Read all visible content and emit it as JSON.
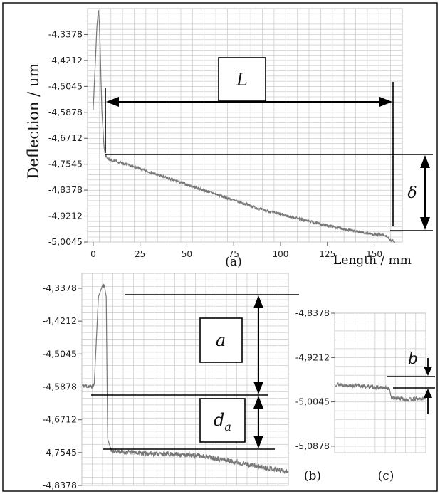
{
  "chart_data": [
    {
      "id": "a",
      "type": "line",
      "panel_label": "(a)",
      "xlabel": "Length / mm",
      "ylabel": "Deflection / um",
      "xlim": [
        -3,
        165
      ],
      "ylim": [
        -5.0045,
        -4.2545
      ],
      "x_ticks": [
        "0",
        "25",
        "50",
        "75",
        "100",
        "125",
        "150"
      ],
      "y_ticks": [
        "-4,3378",
        "-4,4212",
        "-4,5045",
        "-4,5878",
        "-4,6712",
        "-4,7545",
        "-4,8378",
        "-4,9212",
        "-5,0045"
      ],
      "grid": true,
      "series": [
        {
          "color": "#777777",
          "x": [
            0,
            1.2,
            2,
            2.8,
            3.4,
            4,
            4.6,
            5.2,
            5.8,
            6.5,
            7.5,
            9,
            12,
            20,
            30,
            40,
            50,
            60,
            70,
            80,
            90,
            100,
            110,
            120,
            130,
            140,
            150,
            155,
            157,
            158,
            161
          ],
          "y": [
            -4.58,
            -4.42,
            -4.31,
            -4.26,
            -4.31,
            -4.44,
            -4.58,
            -4.64,
            -4.7,
            -4.725,
            -4.735,
            -4.74,
            -4.745,
            -4.76,
            -4.78,
            -4.8,
            -4.82,
            -4.84,
            -4.86,
            -4.88,
            -4.9,
            -4.915,
            -4.93,
            -4.945,
            -4.958,
            -4.97,
            -4.98,
            -4.983,
            -4.987,
            -4.998,
            -5.003
          ]
        }
      ],
      "annotations": {
        "length_label": "L",
        "delta_label": "δ"
      }
    },
    {
      "id": "b",
      "type": "line",
      "panel_label": "(b)",
      "ylim": [
        -4.8378,
        -4.3
      ],
      "y_ticks": [
        "-4,3378",
        "-4,4212",
        "-4,5045",
        "-4,5878",
        "-4,6712",
        "-4,7545",
        "-4,8378"
      ],
      "grid": true,
      "series": [
        {
          "color": "#777777",
          "x": [
            0,
            0.35,
            0.5,
            0.6,
            0.8,
            1.0,
            1.1,
            1.18,
            1.25,
            1.4,
            1.5,
            2,
            3,
            4,
            5,
            6,
            7,
            8,
            9,
            10
          ],
          "y": [
            -4.584,
            -4.586,
            -4.587,
            -4.58,
            -4.36,
            -4.33,
            -4.335,
            -4.36,
            -4.72,
            -4.745,
            -4.75,
            -4.753,
            -4.756,
            -4.758,
            -4.76,
            -4.764,
            -4.774,
            -4.784,
            -4.794,
            -4.802
          ]
        }
      ],
      "annotations": {
        "a_label": "a",
        "da_label": "d",
        "da_subscript": "a"
      }
    },
    {
      "id": "c",
      "type": "line",
      "panel_label": "(c)",
      "ylim": [
        -5.1,
        -4.8378
      ],
      "y_ticks": [
        "-4,8378",
        "-4,9212",
        "-5,0045",
        "-5,0878"
      ],
      "grid": true,
      "series": [
        {
          "color": "#777777",
          "x": [
            0,
            3,
            6,
            6.2,
            8,
            10
          ],
          "y": [
            -4.9712,
            -4.975,
            -4.979,
            -4.996,
            -5.0,
            -4.998
          ]
        }
      ],
      "annotations": {
        "b_label": "b"
      }
    }
  ]
}
